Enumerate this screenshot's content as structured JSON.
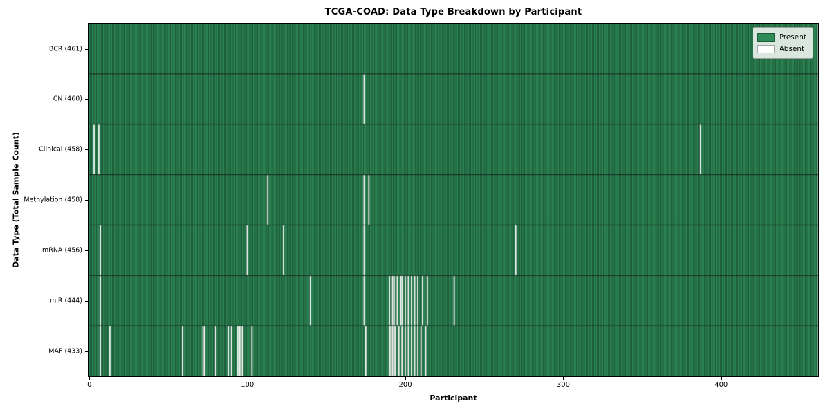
{
  "title": "TCGA-COAD: Data Type Breakdown by Participant",
  "chart_data": {
    "type": "heatmap",
    "title": "TCGA-COAD: Data Type Breakdown by Participant",
    "xlabel": "Participant",
    "ylabel": "Data Type (Total Sample Count)",
    "x_ticks": [
      0,
      100,
      200,
      300,
      400
    ],
    "n_participants": 461,
    "cell_states": [
      "Present",
      "Absent"
    ],
    "colors": {
      "present": "#2e8b57",
      "absent": "#ffffff",
      "bar_edge": "rgba(0,0,0,0.5)",
      "row_separator": "#1a1a1a"
    },
    "legend": {
      "position": "upper right",
      "entries": [
        {
          "label": "Present",
          "color": "#2e8b57"
        },
        {
          "label": "Absent",
          "color": "#ffffff"
        }
      ]
    },
    "rows": [
      {
        "label": "BCR (461)",
        "data_type": "BCR",
        "present_count": 461,
        "absent_participants": []
      },
      {
        "label": "CN (460)",
        "data_type": "CN",
        "present_count": 460,
        "absent_participants": [
          174
        ]
      },
      {
        "label": "Clinical (458)",
        "data_type": "Clinical",
        "present_count": 458,
        "absent_participants": [
          3,
          6,
          387
        ]
      },
      {
        "label": "Methylation (458)",
        "data_type": "Methylation",
        "present_count": 458,
        "absent_participants": [
          113,
          174,
          177
        ]
      },
      {
        "label": "mRNA (456)",
        "data_type": "mRNA",
        "present_count": 456,
        "absent_participants": [
          7,
          100,
          123,
          174,
          270
        ]
      },
      {
        "label": "miR (444)",
        "data_type": "miR",
        "present_count": 444,
        "absent_participants": [
          7,
          140,
          174,
          190,
          192,
          193,
          195,
          197,
          198,
          200,
          202,
          204,
          206,
          208,
          211,
          214,
          231
        ]
      },
      {
        "label": "MAF (433)",
        "data_type": "MAF",
        "present_count": 433,
        "absent_participants": [
          7,
          13,
          59,
          72,
          73,
          80,
          88,
          90,
          94,
          95,
          96,
          97,
          103,
          175,
          190,
          191,
          192,
          193,
          194,
          196,
          198,
          200,
          202,
          204,
          206,
          208,
          210,
          213
        ]
      }
    ]
  }
}
